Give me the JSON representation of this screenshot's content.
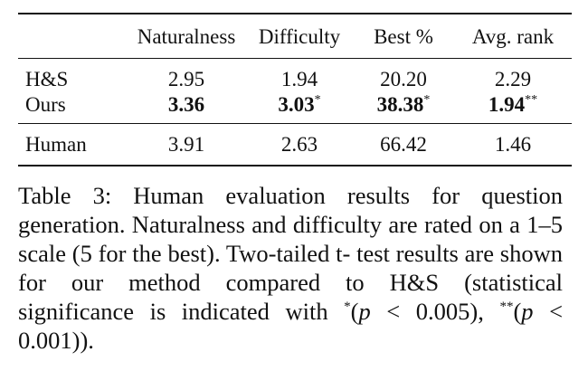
{
  "table": {
    "headers": [
      "",
      "Naturalness",
      "Difficulty",
      "Best %",
      "Avg. rank"
    ],
    "rows": [
      {
        "method": "H&S",
        "naturalness": "2.95",
        "difficulty": "1.94",
        "best": "20.20",
        "avg_rank": "2.29"
      },
      {
        "method": "Ours",
        "naturalness": "3.36",
        "difficulty": "3.03",
        "difficulty_mark": "*",
        "best": "38.38",
        "best_mark": "*",
        "avg_rank": "1.94",
        "avg_rank_mark": "**"
      },
      {
        "method": "Human",
        "naturalness": "3.91",
        "difficulty": "2.63",
        "best": "66.42",
        "avg_rank": "1.46"
      }
    ]
  },
  "caption": {
    "line1": "Table 3:  Human evaluation results for question",
    "line2": "generation.  Naturalness and difficulty are rated",
    "line3": "on a 1–5 scale (5 for the best).  Two-tailed t-",
    "line4": "test results are shown for our method compared to",
    "line5_text": "H&S (statistical significance is indicated with ",
    "line5_mark": "*",
    "line5_open": "(",
    "p_var": "p",
    "line6_a": "< 0.005), ",
    "line6_mark": "**",
    "line6_open": "(",
    "line6_b": " < 0.001))."
  }
}
